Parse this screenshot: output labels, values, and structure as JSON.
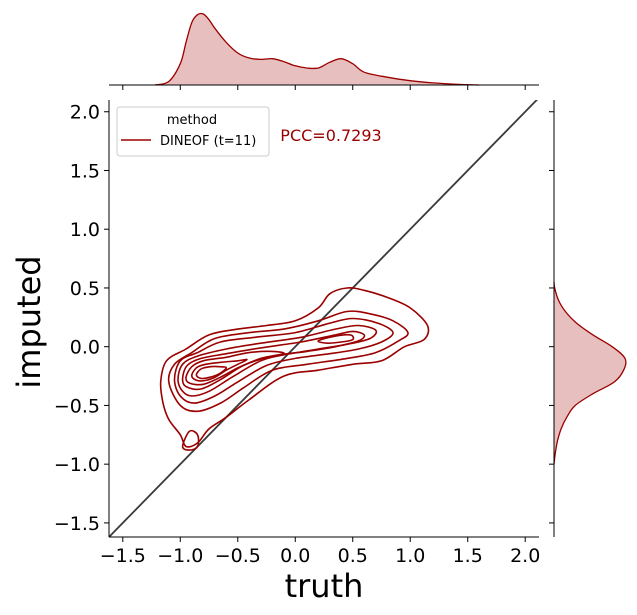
{
  "chart_data": {
    "type": "jointplot-kde",
    "xlabel": "truth",
    "ylabel": "imputed",
    "xlim": [
      -1.62,
      2.12
    ],
    "ylim": [
      -1.62,
      2.1
    ],
    "x_ticks": [
      -1.5,
      -1.0,
      -0.5,
      0.0,
      0.5,
      1.0,
      1.5,
      2.0
    ],
    "x_tick_labels": [
      "−1.5",
      "−1.0",
      "−0.5",
      "0.0",
      "0.5",
      "1.0",
      "1.5",
      "2.0"
    ],
    "y_ticks": [
      -1.5,
      -1.0,
      -0.5,
      0.0,
      0.5,
      1.0,
      1.5,
      2.0
    ],
    "y_tick_labels": [
      "−1.5",
      "−1.0",
      "−0.5",
      "0.0",
      "0.5",
      "1.0",
      "1.5",
      "2.0"
    ],
    "reference_line": {
      "x": [
        -1.62,
        2.12
      ],
      "y": [
        -1.62,
        2.12
      ],
      "color": "#3a3a3a"
    },
    "legend": {
      "title": "method",
      "placement": "top-left",
      "entries": [
        {
          "label": "DINEOF (t=11)",
          "color": "#9b0000"
        }
      ]
    },
    "annotation": {
      "text": "PCC=0.7293",
      "x": -0.13,
      "y": 1.75,
      "color": "#9b0000"
    },
    "series_color": "#9b0000",
    "fill_color": "#e6bcbc",
    "marginal_x_density": {
      "x": [
        -1.22,
        -1.1,
        -1.0,
        -0.95,
        -0.9,
        -0.85,
        -0.8,
        -0.75,
        -0.7,
        -0.6,
        -0.5,
        -0.4,
        -0.3,
        -0.2,
        -0.1,
        0.0,
        0.1,
        0.2,
        0.3,
        0.4,
        0.5,
        0.6,
        0.8,
        1.0,
        1.2,
        1.4,
        1.6
      ],
      "density": [
        0.0,
        0.05,
        0.3,
        0.6,
        0.88,
        0.99,
        1.0,
        0.92,
        0.8,
        0.6,
        0.45,
        0.38,
        0.36,
        0.37,
        0.33,
        0.27,
        0.24,
        0.24,
        0.32,
        0.37,
        0.3,
        0.18,
        0.11,
        0.06,
        0.03,
        0.01,
        0.0
      ]
    },
    "marginal_y_density": {
      "y": [
        -1.0,
        -0.9,
        -0.8,
        -0.7,
        -0.6,
        -0.5,
        -0.4,
        -0.3,
        -0.2,
        -0.1,
        0.0,
        0.1,
        0.2,
        0.3,
        0.4,
        0.5,
        0.55
      ],
      "density": [
        0.0,
        0.02,
        0.05,
        0.1,
        0.18,
        0.3,
        0.55,
        0.85,
        0.98,
        1.0,
        0.82,
        0.55,
        0.32,
        0.16,
        0.06,
        0.01,
        0.0
      ]
    },
    "contours": [
      [
        [
          -1.17,
          -0.3
        ],
        [
          -1.12,
          -0.12
        ],
        [
          -0.95,
          -0.02
        ],
        [
          -0.75,
          0.1
        ],
        [
          -0.5,
          0.15
        ],
        [
          -0.25,
          0.18
        ],
        [
          0.0,
          0.22
        ],
        [
          0.2,
          0.33
        ],
        [
          0.3,
          0.45
        ],
        [
          0.45,
          0.5
        ],
        [
          0.6,
          0.48
        ],
        [
          0.8,
          0.42
        ],
        [
          1.0,
          0.33
        ],
        [
          1.15,
          0.18
        ],
        [
          1.12,
          0.06
        ],
        [
          0.95,
          0.0
        ],
        [
          0.75,
          -0.12
        ],
        [
          0.5,
          -0.15
        ],
        [
          0.2,
          -0.2
        ],
        [
          -0.1,
          -0.25
        ],
        [
          -0.4,
          -0.45
        ],
        [
          -0.6,
          -0.6
        ],
        [
          -0.75,
          -0.7
        ],
        [
          -0.85,
          -0.82
        ],
        [
          -0.95,
          -0.85
        ],
        [
          -1.0,
          -0.75
        ],
        [
          -1.1,
          -0.62
        ],
        [
          -1.15,
          -0.48
        ]
      ],
      [
        [
          -1.1,
          -0.3
        ],
        [
          -1.05,
          -0.15
        ],
        [
          -0.9,
          -0.05
        ],
        [
          -0.7,
          0.07
        ],
        [
          -0.4,
          0.12
        ],
        [
          -0.1,
          0.15
        ],
        [
          0.2,
          0.22
        ],
        [
          0.45,
          0.3
        ],
        [
          0.65,
          0.28
        ],
        [
          0.85,
          0.22
        ],
        [
          0.98,
          0.12
        ],
        [
          0.9,
          0.05
        ],
        [
          0.7,
          -0.05
        ],
        [
          0.45,
          -0.1
        ],
        [
          0.1,
          -0.15
        ],
        [
          -0.2,
          -0.2
        ],
        [
          -0.45,
          -0.35
        ],
        [
          -0.65,
          -0.48
        ],
        [
          -0.85,
          -0.55
        ],
        [
          -1.0,
          -0.5
        ]
      ],
      [
        [
          -1.05,
          -0.28
        ],
        [
          -1.0,
          -0.12
        ],
        [
          -0.85,
          -0.05
        ],
        [
          -0.65,
          0.04
        ],
        [
          -0.35,
          0.08
        ],
        [
          0.0,
          0.12
        ],
        [
          0.3,
          0.2
        ],
        [
          0.5,
          0.24
        ],
        [
          0.72,
          0.2
        ],
        [
          0.85,
          0.12
        ],
        [
          0.75,
          0.04
        ],
        [
          0.55,
          -0.02
        ],
        [
          0.3,
          -0.06
        ],
        [
          0.0,
          -0.1
        ],
        [
          -0.25,
          -0.16
        ],
        [
          -0.5,
          -0.3
        ],
        [
          -0.7,
          -0.42
        ],
        [
          -0.88,
          -0.48
        ],
        [
          -1.0,
          -0.42
        ]
      ],
      [
        [
          -1.02,
          -0.28
        ],
        [
          -0.98,
          -0.15
        ],
        [
          -0.85,
          -0.08
        ],
        [
          -0.6,
          -0.02
        ],
        [
          -0.3,
          0.03
        ],
        [
          0.05,
          0.08
        ],
        [
          0.35,
          0.15
        ],
        [
          0.55,
          0.18
        ],
        [
          0.7,
          0.14
        ],
        [
          0.65,
          0.07
        ],
        [
          0.45,
          0.02
        ],
        [
          0.2,
          -0.02
        ],
        [
          -0.1,
          -0.07
        ],
        [
          -0.3,
          -0.12
        ],
        [
          -0.55,
          -0.26
        ],
        [
          -0.75,
          -0.38
        ],
        [
          -0.9,
          -0.42
        ],
        [
          -0.98,
          -0.38
        ]
      ],
      [
        [
          -0.98,
          -0.27
        ],
        [
          -0.94,
          -0.16
        ],
        [
          -0.82,
          -0.1
        ],
        [
          -0.6,
          -0.06
        ],
        [
          -0.3,
          -0.01
        ],
        [
          0.05,
          0.04
        ],
        [
          0.35,
          0.1
        ],
        [
          0.5,
          0.13
        ],
        [
          0.6,
          0.1
        ],
        [
          0.55,
          0.05
        ],
        [
          0.35,
          0.0
        ],
        [
          0.1,
          -0.04
        ],
        [
          -0.2,
          -0.08
        ],
        [
          -0.45,
          -0.16
        ],
        [
          -0.65,
          -0.28
        ],
        [
          -0.82,
          -0.36
        ],
        [
          -0.95,
          -0.34
        ]
      ],
      [
        [
          -0.95,
          -0.26
        ],
        [
          -0.9,
          -0.17
        ],
        [
          -0.8,
          -0.12
        ],
        [
          -0.6,
          -0.09
        ],
        [
          -0.4,
          -0.05
        ],
        [
          -0.2,
          -0.04
        ],
        [
          -0.1,
          -0.06
        ],
        [
          -0.3,
          -0.1
        ],
        [
          -0.5,
          -0.18
        ],
        [
          -0.65,
          -0.26
        ],
        [
          -0.8,
          -0.32
        ],
        [
          -0.92,
          -0.31
        ]
      ],
      [
        [
          -0.9,
          -0.25
        ],
        [
          -0.86,
          -0.18
        ],
        [
          -0.78,
          -0.15
        ],
        [
          -0.62,
          -0.13
        ],
        [
          -0.5,
          -0.12
        ],
        [
          -0.42,
          -0.11
        ],
        [
          -0.5,
          -0.15
        ],
        [
          -0.6,
          -0.2
        ],
        [
          -0.72,
          -0.27
        ],
        [
          -0.84,
          -0.29
        ]
      ],
      [
        [
          -0.86,
          -0.24
        ],
        [
          -0.82,
          -0.19
        ],
        [
          -0.74,
          -0.17
        ],
        [
          -0.66,
          -0.17
        ],
        [
          -0.6,
          -0.18
        ],
        [
          -0.66,
          -0.23
        ],
        [
          -0.74,
          -0.26
        ],
        [
          -0.82,
          -0.27
        ]
      ],
      [
        [
          0.2,
          0.05
        ],
        [
          0.35,
          0.09
        ],
        [
          0.48,
          0.1
        ],
        [
          0.5,
          0.06
        ],
        [
          0.4,
          0.04
        ],
        [
          0.28,
          0.03
        ]
      ],
      [
        [
          -0.98,
          -0.85
        ],
        [
          -0.92,
          -0.72
        ],
        [
          -0.85,
          -0.75
        ],
        [
          -0.85,
          -0.85
        ],
        [
          -0.92,
          -0.88
        ]
      ]
    ]
  }
}
